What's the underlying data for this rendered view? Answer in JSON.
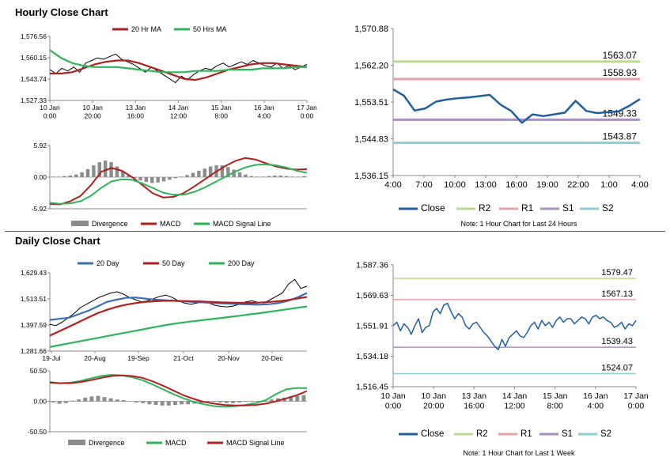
{
  "colors": {
    "red": "#b21f1f",
    "green": "#2db55a",
    "blue": "#3b6fb6",
    "bar": "#8c8c8c",
    "r1": "#e8a0a8",
    "r2": "#bcd98f",
    "s1": "#a691c0",
    "s2": "#8fcdd6",
    "line": "#1f5fa0",
    "price": "#000000"
  },
  "hourly": {
    "title": "Hourly Close Chart",
    "note": "Note: 1 Hour Chart for Last 24 Hours"
  },
  "daily": {
    "title": "Daily Close Chart",
    "note": "Note: 1 Hour Chart for Last 1 Week"
  },
  "chart_data": [
    {
      "id": "hourly_price",
      "type": "line",
      "legend": [
        "20 Hr MA",
        "50 Hrs MA"
      ],
      "yticks": [
        "1,576.56",
        "1,560.15",
        "1,543.74",
        "1,527.33"
      ],
      "ylim": [
        1527.33,
        1576.56
      ],
      "xticks": [
        [
          "10 Jan",
          "0:00"
        ],
        [
          "10 Jan",
          "20:00"
        ],
        [
          "13 Jan",
          "16:00"
        ],
        [
          "14 Jan",
          "12:00"
        ],
        [
          "15 Jan",
          "8:00"
        ],
        [
          "16 Jan",
          "4:00"
        ],
        [
          "17 Jan",
          "0:00"
        ]
      ],
      "series": [
        {
          "name": "Close",
          "values": [
            1551,
            1548,
            1552,
            1550,
            1553,
            1549,
            1556,
            1558,
            1560,
            1559,
            1561,
            1563,
            1559,
            1557,
            1555,
            1552,
            1549,
            1553,
            1550,
            1547,
            1544,
            1541,
            1546,
            1543,
            1547,
            1550,
            1552,
            1551,
            1554,
            1556,
            1553,
            1555,
            1557,
            1555,
            1558,
            1556,
            1554,
            1553,
            1556,
            1552,
            1554,
            1551,
            1553,
            1555
          ]
        },
        {
          "name": "20 Hr MA",
          "values": [
            1548,
            1548,
            1549,
            1552,
            1555,
            1557,
            1558,
            1558,
            1556,
            1553,
            1550,
            1547,
            1544,
            1543,
            1545,
            1548,
            1551,
            1553,
            1555,
            1556,
            1556,
            1555,
            1554,
            1553
          ]
        },
        {
          "name": "50 Hrs MA",
          "values": [
            1566,
            1560,
            1556,
            1554,
            1553,
            1553,
            1553,
            1552,
            1551,
            1550,
            1549,
            1549,
            1549,
            1550,
            1550,
            1550,
            1551,
            1551,
            1551,
            1552,
            1552,
            1552,
            1553,
            1553
          ]
        }
      ]
    },
    {
      "id": "hourly_macd",
      "type": "bar",
      "legend": [
        "Divergence",
        "MACD",
        "MACD Signal Line"
      ],
      "yticks": [
        "5.92",
        "0.00",
        "-5.92"
      ],
      "ylim": [
        -5.92,
        5.92
      ],
      "series": [
        {
          "name": "Divergence",
          "values": [
            0.1,
            0.1,
            0.2,
            0.3,
            0.5,
            0.9,
            1.5,
            2.2,
            2.8,
            3.1,
            2.8,
            2.0,
            1.1,
            0.4,
            -0.2,
            -0.6,
            -0.9,
            -1.1,
            -1.0,
            -0.8,
            -0.5,
            -0.2,
            0.1,
            0.4,
            0.8,
            1.2,
            1.6,
            2.0,
            2.2,
            2.2,
            1.9,
            1.4,
            0.9,
            0.5,
            0.2,
            0.1,
            0.1,
            0.2,
            0.3,
            0.3,
            0.2,
            0.1,
            0.1,
            0.2
          ]
        },
        {
          "name": "MACD",
          "values": [
            -5.0,
            -5.1,
            -4.5,
            -3.5,
            -1.5,
            1.0,
            1.7,
            1.2,
            0.0,
            -1.5,
            -3.0,
            -3.8,
            -3.7,
            -3.0,
            -1.8,
            -0.5,
            0.8,
            2.0,
            3.0,
            3.6,
            3.3,
            2.6,
            2.0,
            1.6,
            1.4,
            1.5
          ]
        },
        {
          "name": "MACD Signal Line",
          "values": [
            -4.8,
            -5.0,
            -4.9,
            -4.5,
            -3.5,
            -2.0,
            -0.8,
            -0.4,
            -0.5,
            -1.2,
            -2.0,
            -2.9,
            -3.3,
            -3.3,
            -2.8,
            -2.0,
            -1.0,
            0.0,
            1.0,
            1.8,
            2.3,
            2.4,
            2.2,
            1.8,
            1.2,
            0.8
          ]
        }
      ]
    },
    {
      "id": "hourly_levels",
      "type": "line",
      "yticks": [
        "1,570.88",
        "1,562.20",
        "1,553.51",
        "1,544.83",
        "1,536.15"
      ],
      "ylim": [
        1536.15,
        1570.88
      ],
      "xticks": [
        "4:00",
        "7:00",
        "10:00",
        "13:00",
        "16:00",
        "19:00",
        "22:00",
        "1:00",
        "4:00"
      ],
      "levels": [
        {
          "name": "R2",
          "value": 1563.07,
          "label": "1563.07"
        },
        {
          "name": "R1",
          "value": 1558.93,
          "label": "1558.93"
        },
        {
          "name": "S1",
          "value": 1549.33,
          "label": "1549.33"
        },
        {
          "name": "S2",
          "value": 1543.87,
          "label": "1543.87"
        }
      ],
      "legend": [
        "Close",
        "R2",
        "R1",
        "S1",
        "S2"
      ],
      "series": [
        {
          "name": "Close",
          "values": [
            1556.5,
            1555.0,
            1551.5,
            1552.0,
            1553.6,
            1554.1,
            1554.4,
            1554.6,
            1554.9,
            1555.2,
            1552.9,
            1551.4,
            1548.6,
            1550.6,
            1550.2,
            1550.6,
            1551.0,
            1553.8,
            1551.4,
            1550.9,
            1551.1,
            1551.3,
            1552.6,
            1554.2
          ]
        }
      ]
    },
    {
      "id": "daily_price",
      "type": "line",
      "legend": [
        "20 Day",
        "50 Day",
        "200 Day"
      ],
      "yticks": [
        "1,629.43",
        "1,513.51",
        "1,397.59",
        "1,281.66"
      ],
      "ylim": [
        1281.66,
        1629.43
      ],
      "xticks": [
        "19-Jul",
        "20-Aug",
        "19-Sep",
        "21-Oct",
        "20-Nov",
        "20-Dec"
      ],
      "series": [
        {
          "name": "Close",
          "values": [
            1400,
            1395,
            1410,
            1430,
            1450,
            1475,
            1490,
            1505,
            1520,
            1530,
            1540,
            1545,
            1535,
            1520,
            1510,
            1500,
            1505,
            1515,
            1525,
            1530,
            1520,
            1505,
            1495,
            1490,
            1495,
            1500,
            1495,
            1485,
            1480,
            1478,
            1482,
            1490,
            1500,
            1505,
            1498,
            1495,
            1510,
            1525,
            1540,
            1580,
            1600,
            1560,
            1570
          ]
        },
        {
          "name": "20 Day",
          "values": [
            1420,
            1425,
            1430,
            1445,
            1460,
            1480,
            1500,
            1510,
            1518,
            1520,
            1515,
            1510,
            1508,
            1505,
            1503,
            1500,
            1498,
            1496,
            1494,
            1492,
            1490,
            1489,
            1488,
            1490,
            1495,
            1505,
            1520,
            1540
          ]
        },
        {
          "name": "50 Day",
          "values": [
            1350,
            1370,
            1390,
            1410,
            1430,
            1450,
            1465,
            1478,
            1488,
            1495,
            1500,
            1503,
            1505,
            1505,
            1504,
            1503,
            1502,
            1500,
            1498,
            1497,
            1496,
            1496,
            1497,
            1500,
            1503,
            1508,
            1515,
            1522
          ]
        },
        {
          "name": "200 Day",
          "values": [
            1300,
            1308,
            1316,
            1324,
            1332,
            1340,
            1348,
            1356,
            1364,
            1372,
            1380,
            1388,
            1396,
            1403,
            1409,
            1414,
            1419,
            1424,
            1429,
            1434,
            1439,
            1445,
            1450,
            1456,
            1462,
            1468,
            1474,
            1480
          ]
        }
      ]
    },
    {
      "id": "daily_macd",
      "type": "bar",
      "legend": [
        "Divergence",
        "MACD",
        "MACD Signal Line"
      ],
      "yticks": [
        "50.50",
        "0.00",
        "-50.50"
      ],
      "ylim": [
        -50.5,
        50.5
      ],
      "series": [
        {
          "name": "Divergence",
          "values": [
            -2,
            -4,
            -3,
            1,
            3,
            6,
            8,
            9,
            7,
            5,
            3,
            2,
            0,
            -2,
            -3,
            -5,
            -6,
            -7,
            -7,
            -6,
            -5,
            -5,
            -4,
            -3,
            -2,
            -1,
            -2,
            -3,
            -3,
            -2,
            -1,
            -1,
            0,
            1,
            3,
            5,
            6,
            8,
            9,
            10
          ]
        },
        {
          "name": "MACD",
          "values": [
            32,
            30,
            31,
            34,
            38,
            42,
            44,
            43,
            40,
            35,
            28,
            20,
            12,
            5,
            -1,
            -5,
            -8,
            -9,
            -8,
            -6,
            -3,
            2,
            12,
            20,
            22,
            22
          ]
        },
        {
          "name": "MACD Signal Line",
          "values": [
            31,
            30,
            30,
            32,
            35,
            39,
            42,
            43,
            42,
            39,
            33,
            26,
            18,
            10,
            4,
            -1,
            -4,
            -6,
            -7,
            -7,
            -6,
            -4,
            0,
            5,
            10,
            17
          ]
        }
      ]
    },
    {
      "id": "daily_levels",
      "type": "line",
      "yticks": [
        "1,587.36",
        "1,569.63",
        "1,551.91",
        "1,534.18",
        "1,516.45"
      ],
      "ylim": [
        1516.45,
        1587.36
      ],
      "xticks": [
        [
          "10 Jan",
          "0:00"
        ],
        [
          "10 Jan",
          "20:00"
        ],
        [
          "13 Jan",
          "16:00"
        ],
        [
          "14 Jan",
          "12:00"
        ],
        [
          "15 Jan",
          "8:00"
        ],
        [
          "16 Jan",
          "4:00"
        ],
        [
          "17 Jan",
          "0:00"
        ]
      ],
      "levels": [
        {
          "name": "R2",
          "value": 1579.47,
          "label": "1579.47"
        },
        {
          "name": "R1",
          "value": 1567.13,
          "label": "1567.13"
        },
        {
          "name": "S1",
          "value": 1539.43,
          "label": "1539.43"
        },
        {
          "name": "S2",
          "value": 1524.07,
          "label": "1524.07"
        }
      ],
      "legend": [
        "Close",
        "R2",
        "R1",
        "S1",
        "S2"
      ],
      "series": [
        {
          "name": "Close",
          "values": [
            1552,
            1554,
            1549,
            1553,
            1551,
            1547,
            1552,
            1556,
            1548,
            1551,
            1552,
            1560,
            1562,
            1559,
            1564,
            1565,
            1560,
            1556,
            1559,
            1557,
            1552,
            1550,
            1553,
            1554,
            1551,
            1548,
            1546,
            1543,
            1540,
            1538,
            1544,
            1540,
            1545,
            1547,
            1549,
            1546,
            1545,
            1548,
            1552,
            1554,
            1550,
            1555,
            1552,
            1554,
            1551,
            1555,
            1557,
            1554,
            1556,
            1556,
            1553,
            1555,
            1557,
            1556,
            1553,
            1557,
            1558,
            1556,
            1557,
            1555,
            1554,
            1551,
            1552,
            1554,
            1550,
            1553,
            1552,
            1555
          ]
        }
      ]
    }
  ]
}
